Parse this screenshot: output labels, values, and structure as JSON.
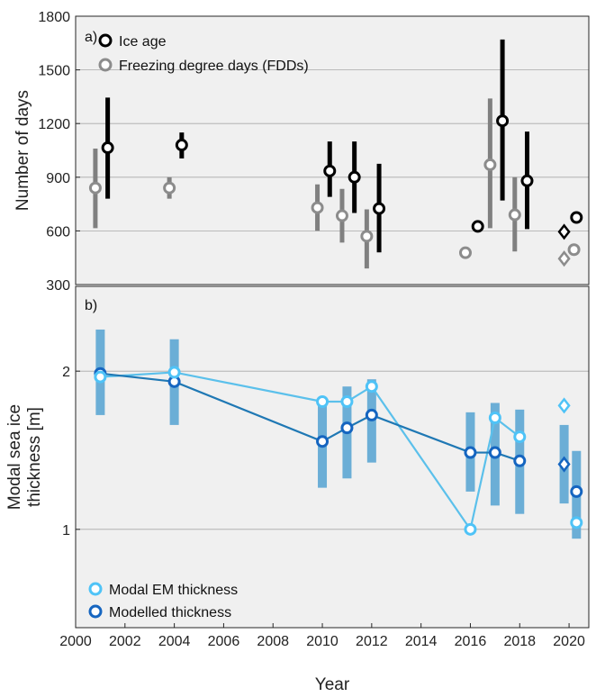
{
  "colors": {
    "panel_bg": "#f0f0f0",
    "grid": "#a8a8a8",
    "ice_age": "#000000",
    "fdd_bar": "#808080",
    "fdd_marker": "#8c8c8c",
    "em_bar": "#6baed6",
    "em_line": "#5bc0eb",
    "em_marker": "#4fc3f7",
    "model_line": "#1f78b4",
    "model_marker": "#1565c0"
  },
  "chart_data": [
    {
      "type": "scatter",
      "panel_label": "a)",
      "ylabel": "Number of days",
      "ylim": [
        300,
        1800
      ],
      "yticks": [
        "300",
        "600",
        "900",
        "1200",
        "1500",
        "1800"
      ],
      "grid": true,
      "legend_position": "top-left",
      "series": [
        {
          "name": "Ice age",
          "marker": "circle",
          "points": [
            {
              "x": 2001.3,
              "y": 1065,
              "low": 780,
              "high": 1345
            },
            {
              "x": 2004.3,
              "y": 1080,
              "low": 1005,
              "high": 1150
            },
            {
              "x": 2010.3,
              "y": 935,
              "low": 790,
              "high": 1100
            },
            {
              "x": 2011.3,
              "y": 900,
              "low": 700,
              "high": 1100
            },
            {
              "x": 2012.3,
              "y": 725,
              "low": 480,
              "high": 975
            },
            {
              "x": 2016.3,
              "y": 625,
              "low": null,
              "high": null
            },
            {
              "x": 2017.3,
              "y": 1215,
              "low": 770,
              "high": 1670
            },
            {
              "x": 2018.3,
              "y": 880,
              "low": 610,
              "high": 1155
            },
            {
              "x": 2020.3,
              "y": 675,
              "low": null,
              "high": null
            }
          ],
          "diamond_points": [
            {
              "x": 2019.8,
              "y": 595
            }
          ]
        },
        {
          "name": "Freezing degree days (FDDs)",
          "marker": "circle",
          "points": [
            {
              "x": 2000.8,
              "y": 840,
              "low": 615,
              "high": 1060
            },
            {
              "x": 2003.8,
              "y": 840,
              "low": 780,
              "high": 900
            },
            {
              "x": 2009.8,
              "y": 730,
              "low": 600,
              "high": 860
            },
            {
              "x": 2010.8,
              "y": 685,
              "low": 535,
              "high": 835
            },
            {
              "x": 2011.8,
              "y": 570,
              "low": 390,
              "high": 720
            },
            {
              "x": 2015.8,
              "y": 478,
              "low": null,
              "high": null
            },
            {
              "x": 2016.8,
              "y": 970,
              "low": 615,
              "high": 1340
            },
            {
              "x": 2017.8,
              "y": 690,
              "low": 485,
              "high": 900
            },
            {
              "x": 2020.2,
              "y": 495,
              "low": null,
              "high": null
            }
          ],
          "diamond_points": [
            {
              "x": 2019.8,
              "y": 445
            }
          ]
        }
      ]
    },
    {
      "type": "line",
      "panel_label": "b)",
      "xlabel": "Year",
      "ylabel_lines": [
        "Modal sea ice",
        "thickness [m]"
      ],
      "y_scale": "log",
      "ylim": [
        0.65,
        2.9
      ],
      "yticks": [
        "1",
        "2"
      ],
      "xlim": [
        2000,
        2020.8
      ],
      "xticks": [
        "2000",
        "2002",
        "2004",
        "2006",
        "2008",
        "2010",
        "2012",
        "2014",
        "2016",
        "2018",
        "2020"
      ],
      "grid": true,
      "legend_position": "bottom-left",
      "bars": [
        {
          "x": 2001,
          "low": 1.65,
          "high": 2.4
        },
        {
          "x": 2004,
          "low": 1.58,
          "high": 2.3
        },
        {
          "x": 2010,
          "low": 1.2,
          "high": 1.78
        },
        {
          "x": 2011,
          "low": 1.25,
          "high": 1.87
        },
        {
          "x": 2012,
          "low": 1.34,
          "high": 1.93
        },
        {
          "x": 2016,
          "low": 1.18,
          "high": 1.67
        },
        {
          "x": 2017,
          "low": 1.11,
          "high": 1.74
        },
        {
          "x": 2018,
          "low": 1.07,
          "high": 1.69
        },
        {
          "x": 2019.8,
          "low": 1.12,
          "high": 1.58
        },
        {
          "x": 2020.3,
          "low": 0.96,
          "high": 1.41
        }
      ],
      "series": [
        {
          "name": "Modal EM thickness",
          "x": [
            2001,
            2004,
            2010,
            2011,
            2012,
            2016,
            2017,
            2018,
            2020.3
          ],
          "values": [
            1.95,
            1.99,
            1.75,
            1.75,
            1.87,
            1.0,
            1.63,
            1.5,
            1.03
          ],
          "line_breaks_before": [
            8
          ],
          "diamond_points": [
            {
              "x": 2019.8,
              "y": 1.72
            }
          ]
        },
        {
          "name": "Modelled thickness",
          "x": [
            2001,
            2004,
            2010,
            2011,
            2012,
            2016,
            2017,
            2018,
            2020.3
          ],
          "values": [
            1.98,
            1.91,
            1.47,
            1.56,
            1.65,
            1.4,
            1.4,
            1.35,
            1.18
          ],
          "line_breaks_before": [
            8
          ],
          "diamond_points": [
            {
              "x": 2019.8,
              "y": 1.33
            }
          ]
        }
      ]
    }
  ]
}
